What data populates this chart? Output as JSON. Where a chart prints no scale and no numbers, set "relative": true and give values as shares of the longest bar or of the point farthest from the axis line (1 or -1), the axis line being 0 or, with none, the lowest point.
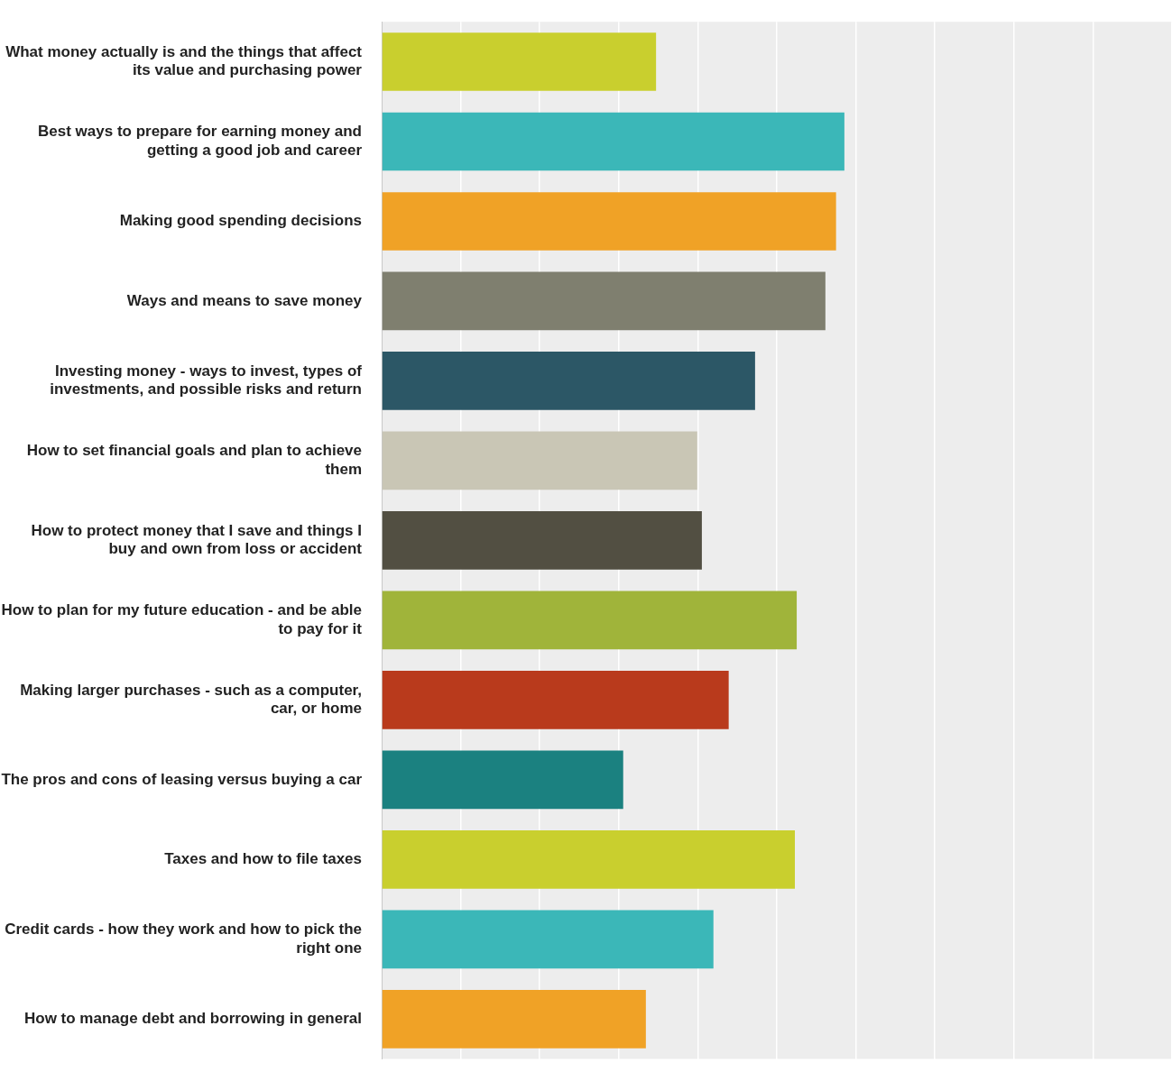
{
  "chart_data": {
    "type": "bar",
    "orientation": "horizontal",
    "relative": true,
    "grid": "x",
    "categories": [
      "What money actually is and the things that affect its value and purchasing power",
      "Best ways to prepare for earning money and getting a good job and career",
      "Making good spending decisions",
      "Ways and means to save money",
      "Investing money - ways to invest, types of investments, and possible risks and return",
      "How to set financial goals and plan to achieve them",
      "How to protect money that I save and things I buy and own from loss or accident",
      "How to plan for my future education - and be able to pay for it",
      "Making larger purchases - such as a computer, car, or home",
      "The pros and cons of leasing versus buying a car",
      "Taxes and how to file taxes",
      "Credit cards - how they work and how to pick the right one",
      "How to manage debt and borrowing in general"
    ],
    "values": [
      0.593,
      1,
      0.982,
      0.959,
      0.807,
      0.682,
      0.692,
      0.897,
      0.75,
      0.522,
      0.893,
      0.717,
      0.571
    ],
    "colors": [
      "#c9cf2e",
      "#3bb7b8",
      "#f0a226",
      "#7f7f6f",
      "#2c5766",
      "#c9c6b5",
      "#524f42",
      "#a0b43a",
      "#b93a1c",
      "#1b8180",
      "#c9cf2e",
      "#3bb7b8",
      "#f0a226"
    ]
  }
}
